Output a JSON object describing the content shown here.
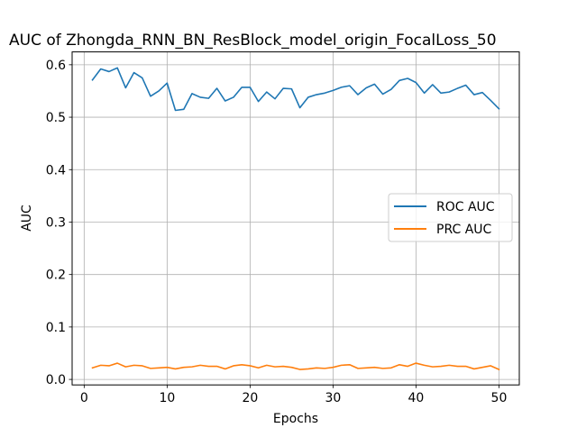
{
  "chart_data": {
    "type": "line",
    "title": "AUC of Zhongda_RNN_BN_ResBlock_model_origin_FocalLoss_50",
    "xlabel": "Epochs",
    "ylabel": "AUC",
    "xlim": [
      -1.45,
      52.45
    ],
    "ylim": [
      -0.0105,
      0.6245
    ],
    "xticks": [
      0,
      10,
      20,
      30,
      40,
      50
    ],
    "xtick_labels": [
      "0",
      "10",
      "20",
      "30",
      "40",
      "50"
    ],
    "yticks": [
      0.0,
      0.1,
      0.2,
      0.3,
      0.4,
      0.5,
      0.6
    ],
    "ytick_labels": [
      "0.0",
      "0.1",
      "0.2",
      "0.3",
      "0.4",
      "0.5",
      "0.6"
    ],
    "grid": true,
    "legend_position": "center-right",
    "x": [
      1,
      2,
      3,
      4,
      5,
      6,
      7,
      8,
      9,
      10,
      11,
      12,
      13,
      14,
      15,
      16,
      17,
      18,
      19,
      20,
      21,
      22,
      23,
      24,
      25,
      26,
      27,
      28,
      29,
      30,
      31,
      32,
      33,
      34,
      35,
      36,
      37,
      38,
      39,
      40,
      41,
      42,
      43,
      44,
      45,
      46,
      47,
      48,
      49,
      50
    ],
    "series": [
      {
        "name": "ROC AUC",
        "color": "#1f77b4",
        "values": [
          0.571,
          0.592,
          0.587,
          0.594,
          0.556,
          0.585,
          0.575,
          0.54,
          0.55,
          0.565,
          0.513,
          0.515,
          0.545,
          0.538,
          0.536,
          0.555,
          0.531,
          0.538,
          0.557,
          0.557,
          0.53,
          0.548,
          0.535,
          0.555,
          0.554,
          0.518,
          0.538,
          0.543,
          0.546,
          0.551,
          0.557,
          0.56,
          0.543,
          0.556,
          0.563,
          0.544,
          0.553,
          0.57,
          0.574,
          0.566,
          0.546,
          0.562,
          0.546,
          0.548,
          0.555,
          0.561,
          0.543,
          0.547,
          0.532,
          0.516
        ]
      },
      {
        "name": "PRC AUC",
        "color": "#ff7f0e",
        "values": [
          0.022,
          0.027,
          0.026,
          0.031,
          0.024,
          0.027,
          0.026,
          0.021,
          0.022,
          0.023,
          0.02,
          0.023,
          0.024,
          0.027,
          0.025,
          0.025,
          0.02,
          0.026,
          0.028,
          0.026,
          0.022,
          0.027,
          0.024,
          0.025,
          0.023,
          0.019,
          0.02,
          0.022,
          0.021,
          0.023,
          0.027,
          0.028,
          0.021,
          0.022,
          0.023,
          0.021,
          0.022,
          0.028,
          0.025,
          0.031,
          0.027,
          0.024,
          0.025,
          0.027,
          0.025,
          0.025,
          0.02,
          0.023,
          0.026,
          0.019
        ]
      }
    ]
  }
}
